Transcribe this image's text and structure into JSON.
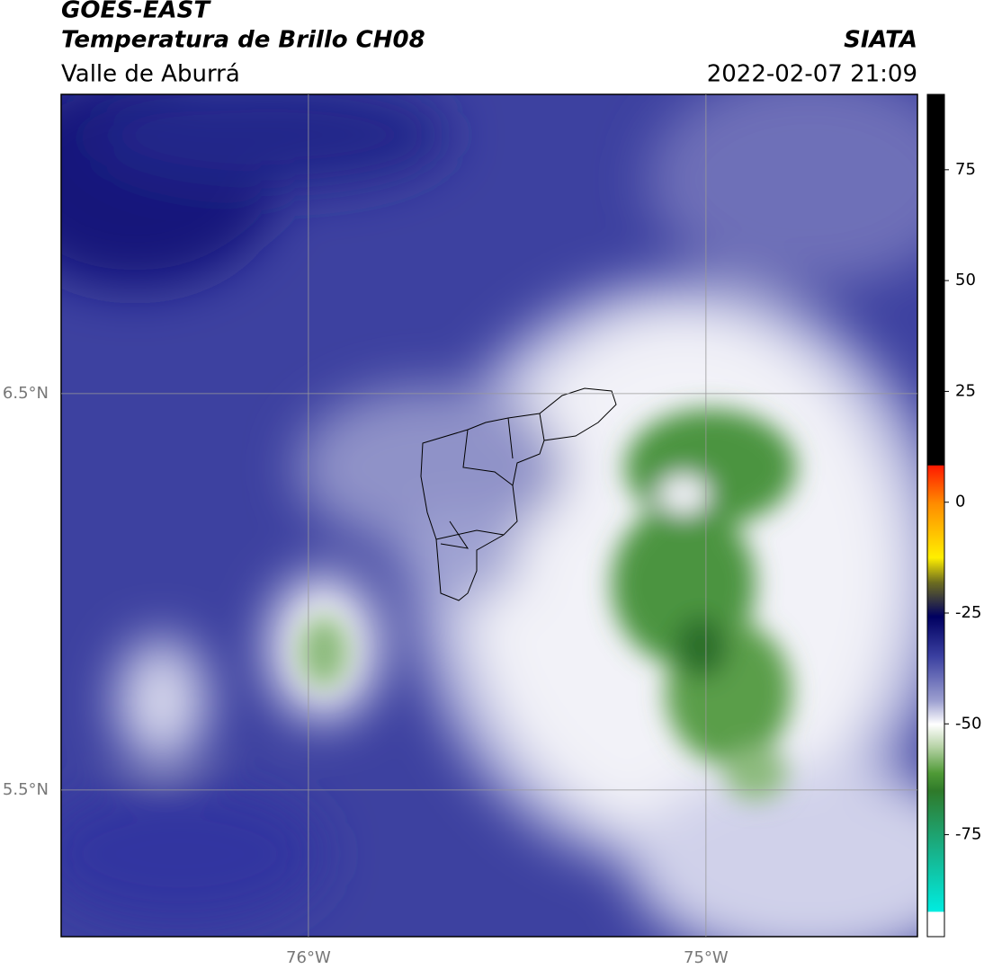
{
  "header": {
    "title": "GOES-EAST",
    "subtitle": "Temperatura de Brillo CH08",
    "region": "Valle de Aburrá",
    "source": "SIATA",
    "datetime": "2022-02-07 21:09"
  },
  "map": {
    "xlim": [
      -76.622,
      -74.468
    ],
    "ylim": [
      5.13,
      7.255
    ],
    "xticks": [
      {
        "value": -76,
        "label": "76°W"
      },
      {
        "value": -75,
        "label": "75°W"
      }
    ],
    "yticks": [
      {
        "value": 6.5,
        "label": "6.5°N"
      },
      {
        "value": 5.5,
        "label": "5.5°N"
      }
    ],
    "grid": true
  },
  "colorbar": {
    "lim": [
      -98,
      92
    ],
    "ticks": [
      75,
      50,
      25,
      0,
      -25,
      -50,
      -75
    ]
  }
}
